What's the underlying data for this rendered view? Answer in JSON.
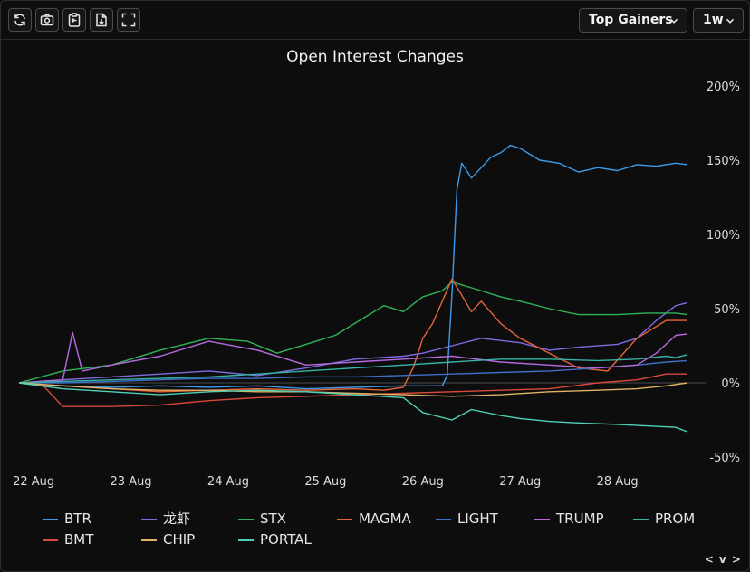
{
  "toolbar": {
    "icons": [
      "refresh-icon",
      "camera-icon",
      "clipboard-icon",
      "download-file-icon",
      "fullscreen-icon"
    ],
    "mode_select": {
      "value": "Top Gainers"
    },
    "range_select": {
      "value": "1w"
    }
  },
  "pager": {
    "label": "< v >"
  },
  "chart_data": {
    "type": "line",
    "title": "Open Interest Changes",
    "xlabel": "",
    "ylabel": "",
    "x_ticks": [
      "22 Aug",
      "23 Aug",
      "24 Aug",
      "25 Aug",
      "26 Aug",
      "27 Aug",
      "28 Aug"
    ],
    "y_ticks": [
      "200%",
      "150%",
      "100%",
      "50%",
      "0%",
      "-50%"
    ],
    "ylim": [
      -50,
      200
    ],
    "xlim": [
      21.85,
      28.72
    ],
    "grid": false,
    "zero_line": true,
    "legend_position": "bottom",
    "series": [
      {
        "name": "BTR",
        "color": "#3d9be9",
        "x": [
          21.85,
          22.3,
          22.8,
          23.3,
          23.8,
          24.3,
          24.8,
          25.3,
          25.8,
          26.2,
          26.25,
          26.3,
          26.35,
          26.4,
          26.5,
          26.6,
          26.7,
          26.8,
          26.9,
          27.0,
          27.2,
          27.4,
          27.6,
          27.8,
          28.0,
          28.2,
          28.4,
          28.6,
          28.72
        ],
        "y": [
          0,
          -2,
          -3,
          -2,
          -3,
          -2,
          -4,
          -3,
          -2,
          -2,
          5,
          60,
          130,
          148,
          138,
          145,
          152,
          155,
          160,
          158,
          150,
          148,
          142,
          145,
          143,
          147,
          146,
          148,
          147
        ]
      },
      {
        "name": "龙虾",
        "color": "#7f6be0",
        "x": [
          21.85,
          22.3,
          22.8,
          23.3,
          23.8,
          24.3,
          24.8,
          25.3,
          25.8,
          26.0,
          26.3,
          26.6,
          27.0,
          27.3,
          27.6,
          28.0,
          28.2,
          28.4,
          28.6,
          28.72
        ],
        "y": [
          0,
          2,
          4,
          6,
          8,
          5,
          10,
          16,
          18,
          20,
          25,
          30,
          27,
          22,
          24,
          26,
          30,
          42,
          52,
          54
        ]
      },
      {
        "name": "STX",
        "color": "#2fb35a",
        "x": [
          21.85,
          22.3,
          22.8,
          23.3,
          23.8,
          24.2,
          24.5,
          24.8,
          25.1,
          25.3,
          25.6,
          25.8,
          26.0,
          26.2,
          26.3,
          26.5,
          26.8,
          27.0,
          27.3,
          27.6,
          28.0,
          28.3,
          28.6,
          28.72
        ],
        "y": [
          0,
          8,
          12,
          22,
          30,
          28,
          20,
          26,
          32,
          40,
          52,
          48,
          58,
          62,
          68,
          64,
          58,
          55,
          50,
          46,
          46,
          47,
          47,
          46
        ]
      },
      {
        "name": "MAGMA",
        "color": "#e8643a",
        "x": [
          21.85,
          22.3,
          22.8,
          23.3,
          23.8,
          24.3,
          24.8,
          25.3,
          25.6,
          25.8,
          25.9,
          26.0,
          26.1,
          26.2,
          26.3,
          26.5,
          26.6,
          26.8,
          27.0,
          27.3,
          27.6,
          27.9,
          28.2,
          28.5,
          28.72
        ],
        "y": [
          0,
          -2,
          -4,
          -6,
          -5,
          -4,
          -5,
          -4,
          -5,
          -3,
          10,
          30,
          40,
          55,
          70,
          48,
          55,
          40,
          30,
          20,
          10,
          8,
          30,
          42,
          42
        ]
      },
      {
        "name": "LIGHT",
        "color": "#3f6fc9",
        "x": [
          21.85,
          22.3,
          22.8,
          23.3,
          23.8,
          24.3,
          24.8,
          25.3,
          25.8,
          26.3,
          26.8,
          27.3,
          27.8,
          28.2,
          28.5,
          28.72
        ],
        "y": [
          0,
          0,
          1,
          2,
          3,
          3,
          4,
          4,
          5,
          6,
          7,
          8,
          10,
          12,
          14,
          15
        ]
      },
      {
        "name": "TRUMP",
        "color": "#b66ae0",
        "x": [
          21.85,
          22.3,
          22.4,
          22.5,
          22.8,
          23.3,
          23.8,
          24.3,
          24.8,
          25.3,
          25.8,
          26.3,
          26.8,
          27.3,
          27.8,
          28.2,
          28.4,
          28.6,
          28.72
        ],
        "y": [
          0,
          2,
          34,
          8,
          12,
          18,
          28,
          22,
          12,
          14,
          16,
          18,
          14,
          12,
          10,
          12,
          20,
          32,
          33
        ]
      },
      {
        "name": "PROM",
        "color": "#36b3a6",
        "x": [
          21.85,
          22.3,
          22.8,
          23.3,
          23.8,
          24.3,
          24.8,
          25.3,
          25.8,
          26.3,
          26.8,
          27.3,
          27.8,
          28.2,
          28.5,
          28.6,
          28.72
        ],
        "y": [
          0,
          1,
          2,
          3,
          4,
          6,
          8,
          10,
          12,
          14,
          16,
          16,
          15,
          16,
          18,
          17,
          19
        ]
      },
      {
        "name": "BMT",
        "color": "#d84a3a",
        "x": [
          21.85,
          22.1,
          22.3,
          22.8,
          23.3,
          23.8,
          24.3,
          24.8,
          25.3,
          25.8,
          26.3,
          26.8,
          27.3,
          27.8,
          28.2,
          28.5,
          28.72
        ],
        "y": [
          0,
          -2,
          -16,
          -16,
          -15,
          -12,
          -10,
          -9,
          -8,
          -7,
          -6,
          -5,
          -4,
          0,
          2,
          6,
          6
        ]
      },
      {
        "name": "CHIP",
        "color": "#e0b366",
        "x": [
          21.85,
          22.3,
          22.8,
          23.3,
          23.8,
          24.3,
          24.8,
          25.3,
          25.8,
          26.3,
          26.8,
          27.3,
          27.8,
          28.2,
          28.5,
          28.72
        ],
        "y": [
          0,
          -2,
          -4,
          -5,
          -5,
          -6,
          -6,
          -7,
          -8,
          -9,
          -8,
          -6,
          -5,
          -4,
          -2,
          0
        ]
      },
      {
        "name": "PORTAL",
        "color": "#4fd1b8",
        "x": [
          21.85,
          22.3,
          22.8,
          23.3,
          23.8,
          24.3,
          24.8,
          25.3,
          25.8,
          26.0,
          26.3,
          26.5,
          26.8,
          27.0,
          27.3,
          27.6,
          28.0,
          28.3,
          28.6,
          28.72
        ],
        "y": [
          0,
          -4,
          -6,
          -8,
          -6,
          -5,
          -6,
          -8,
          -10,
          -20,
          -25,
          -18,
          -22,
          -24,
          -26,
          -27,
          -28,
          -29,
          -30,
          -33
        ]
      }
    ]
  }
}
